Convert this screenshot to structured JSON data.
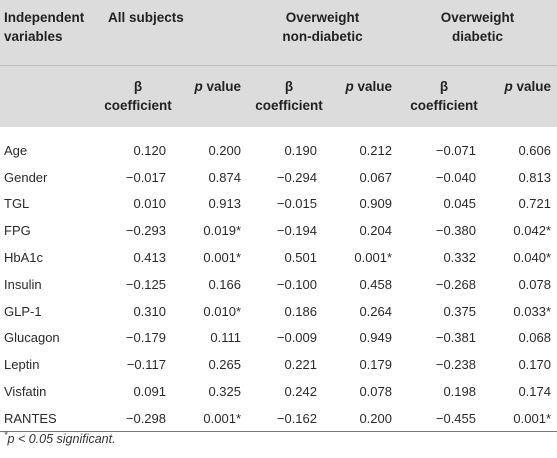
{
  "header": {
    "independent_variables": [
      "Independent",
      "variables"
    ],
    "groups": [
      [
        "All subjects"
      ],
      [
        "Overweight",
        "non-diabetic"
      ],
      [
        "Overweight",
        "diabetic"
      ]
    ],
    "beta_label": [
      "β",
      "coefficient"
    ],
    "p_label_italic": "p",
    "p_label_rest": " value"
  },
  "rows": [
    {
      "var": "Age",
      "v": [
        "0.120",
        "0.200",
        "0.190",
        "0.212",
        "−0.071",
        "0.606"
      ]
    },
    {
      "var": "Gender",
      "v": [
        "−0.017",
        "0.874",
        "−0.294",
        "0.067",
        "−0.040",
        "0.813"
      ]
    },
    {
      "var": "TGL",
      "v": [
        "0.010",
        "0.913",
        "−0.015",
        "0.909",
        "0.045",
        "0.721"
      ]
    },
    {
      "var": "FPG",
      "v": [
        "−0.293",
        "0.019*",
        "−0.194",
        "0.204",
        "−0.380",
        "0.042*"
      ]
    },
    {
      "var": "HbA1c",
      "v": [
        "0.413",
        "0.001*",
        "0.501",
        "0.001*",
        "0.332",
        "0.040*"
      ]
    },
    {
      "var": "Insulin",
      "v": [
        "−0.125",
        "0.166",
        "−0.100",
        "0.458",
        "−0.268",
        "0.078"
      ]
    },
    {
      "var": "GLP-1",
      "v": [
        "0.310",
        "0.010*",
        "0.186",
        "0.264",
        "0.375",
        "0.033*"
      ]
    },
    {
      "var": "Glucagon",
      "v": [
        "−0.179",
        "0.111",
        "−0.009",
        "0.949",
        "−0.381",
        "0.068"
      ]
    },
    {
      "var": "Leptin",
      "v": [
        "−0.117",
        "0.265",
        "0.221",
        "0.179",
        "−0.238",
        "0.170"
      ]
    },
    {
      "var": "Visfatin",
      "v": [
        "0.091",
        "0.325",
        "0.242",
        "0.078",
        "0.198",
        "0.174"
      ]
    },
    {
      "var": "RANTES",
      "v": [
        "−0.298",
        "0.001*",
        "−0.162",
        "0.200",
        "−0.455",
        "0.001*"
      ]
    }
  ],
  "footnote": {
    "marker": "*",
    "text": "p < 0.05 significant."
  }
}
